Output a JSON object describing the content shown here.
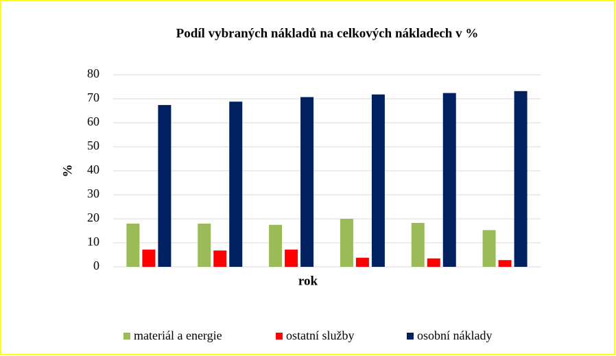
{
  "chart_data": {
    "type": "bar",
    "title": "Podíl vybraných nákladů na celkových nákladech v %",
    "x_label": "rok",
    "y_label": "%",
    "categories": [
      null,
      null,
      null,
      null,
      null,
      null
    ],
    "series": [
      {
        "name": "materiál a energie",
        "color": "#9bbb59",
        "values": [
          18,
          18,
          17.5,
          20,
          18.3,
          15.3
        ]
      },
      {
        "name": "ostatní služby",
        "color": "#ff0000",
        "values": [
          7.2,
          6.8,
          7.2,
          3.8,
          3.5,
          2.8
        ]
      },
      {
        "name": "osobní náklady",
        "color": "#002060",
        "values": [
          67.4,
          68.8,
          70.7,
          71.8,
          72.4,
          73.2
        ]
      }
    ],
    "ylim": [
      0,
      80
    ],
    "yticks": [
      0,
      10,
      20,
      30,
      40,
      50,
      60,
      70,
      80
    ],
    "grid": true,
    "legend": "bottom"
  }
}
